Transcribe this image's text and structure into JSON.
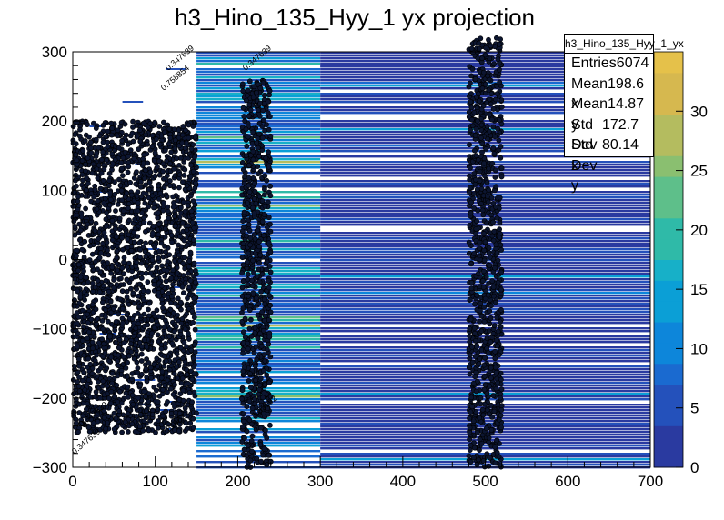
{
  "chart_data": {
    "type": "heatmap",
    "title": "h3_Hino_135_Hyy_1 yx projection",
    "xlabel": "",
    "ylabel": "",
    "xlim": [
      0,
      700
    ],
    "ylim": [
      -300,
      300
    ],
    "x_ticks": [
      "0",
      "100",
      "200",
      "300",
      "400",
      "500",
      "600",
      "700"
    ],
    "y_ticks": [
      "300",
      "200",
      "100",
      "0",
      "−100",
      "−200",
      "−300"
    ],
    "z_ticks": [
      "0",
      "5",
      "10",
      "15",
      "20",
      "25",
      "30"
    ],
    "zlim": [
      0,
      35
    ],
    "palette": [
      "#2a3aa0",
      "#2451bb",
      "#1a6ad0",
      "#0d86da",
      "#0b9fd6",
      "#17b0c8",
      "#2fbaa8",
      "#5ebf8a",
      "#8abf70",
      "#b4bc5f",
      "#d6b84f",
      "#e5c14a"
    ],
    "regions": [
      {
        "x": [
          0,
          150
        ],
        "fill": "sparse",
        "note_values": [
          "0.347639",
          "0.758854",
          "1.81062"
        ]
      },
      {
        "x": [
          150,
          300
        ],
        "fill": "dense",
        "typical_count": 10
      },
      {
        "x": [
          300,
          700
        ],
        "fill": "dense",
        "typical_count": 3
      }
    ],
    "dark_columns": [
      {
        "x": [
          0,
          150
        ],
        "y": [
          -250,
          200
        ]
      },
      {
        "x": [
          205,
          240
        ],
        "y": [
          -300,
          260
        ]
      },
      {
        "x": [
          480,
          520
        ],
        "y": [
          -300,
          320
        ]
      }
    ],
    "cell_labels": [
      "0.347639",
      "0.347639",
      "0.347639",
      "0.758854",
      "1.81062",
      "1.32192",
      "0.347639"
    ]
  },
  "stats": {
    "name": "h3_Hino_135_Hyy_1_yx",
    "rows": [
      {
        "label": "Entries",
        "value": "6074"
      },
      {
        "label": "Mean x",
        "value": "198.6"
      },
      {
        "label": "Mean y",
        "value": "14.87"
      },
      {
        "label": "Std Dev x",
        "value": "172.7"
      },
      {
        "label": "Std Dev y",
        "value": "80.14"
      }
    ]
  }
}
